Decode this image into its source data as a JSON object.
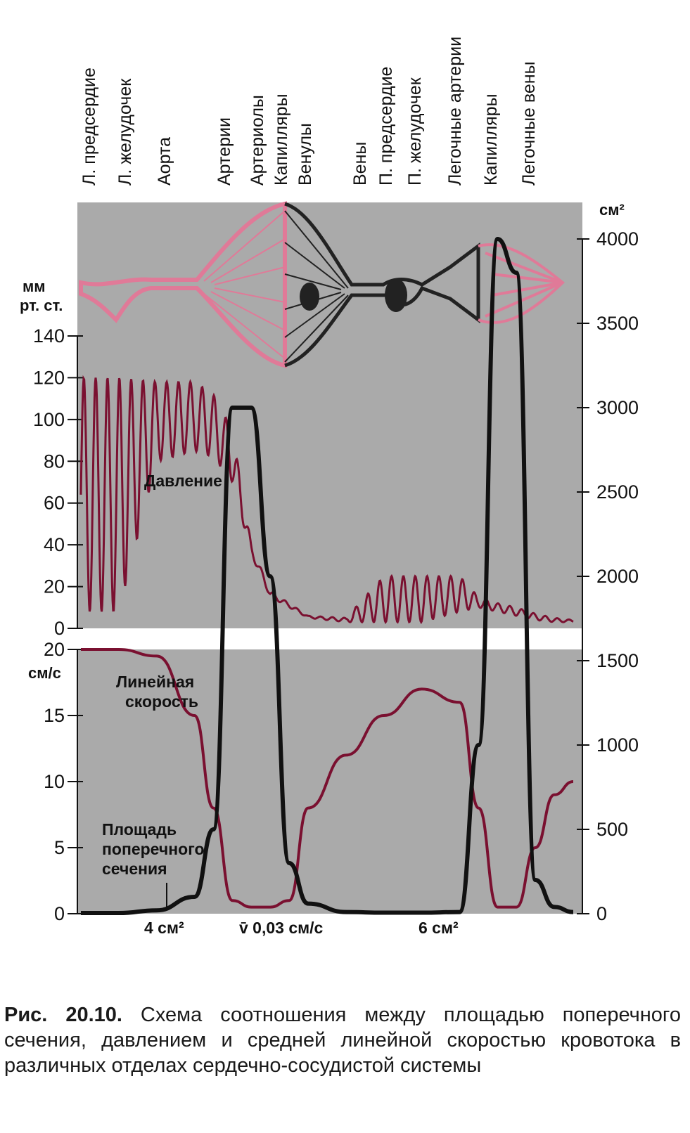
{
  "chart_data": {
    "type": "line",
    "segments": [
      "Л. предсердие",
      "Л. желудочек",
      "Аорта",
      "Артерии",
      "Артериолы",
      "Капилляры",
      "Венулы",
      "Вены",
      "П. предсердие",
      "П. желудочек",
      "Легочные артерии",
      "Капилляры",
      "Легочные вены"
    ],
    "pressure_axis": {
      "unit_line1": "мм",
      "unit_line2": "рт. ст.",
      "ticks": [
        "0",
        "20",
        "40",
        "60",
        "80",
        "100",
        "120",
        "140"
      ],
      "range": [
        0,
        140
      ]
    },
    "velocity_axis": {
      "unit": "см/с",
      "ticks": [
        "0",
        "5",
        "10",
        "15",
        "20"
      ],
      "range": [
        0,
        20
      ]
    },
    "area_axis": {
      "unit": "см²",
      "ticks": [
        "0",
        "500",
        "1000",
        "1500",
        "2000",
        "2500",
        "3000",
        "3500",
        "4000"
      ],
      "range": [
        0,
        4000
      ]
    },
    "series": [
      {
        "name": "Давление",
        "color": "#7a1030",
        "x": [
          0,
          1,
          2,
          3,
          3.5,
          4,
          4.5,
          5,
          5.5,
          6,
          7,
          8,
          9,
          10,
          10.5,
          11,
          11.5,
          12,
          12.5,
          13
        ],
        "min": [
          8,
          8,
          80,
          85,
          82,
          70,
          35,
          15,
          10,
          5,
          3,
          3,
          3,
          8,
          10,
          8,
          6,
          4,
          3,
          3
        ],
        "max": [
          120,
          120,
          118,
          118,
          112,
          95,
          40,
          18,
          12,
          6,
          5,
          25,
          25,
          25,
          15,
          12,
          10,
          7,
          5,
          4
        ]
      },
      {
        "name": "Линейная скорость",
        "color": "#7a1030",
        "x": [
          0,
          1,
          2,
          3,
          3.5,
          4,
          4.5,
          5,
          5.5,
          6,
          7,
          8,
          9,
          10,
          10.5,
          11,
          11.5,
          12,
          12.5,
          13
        ],
        "y": [
          20,
          20,
          19.5,
          15,
          8,
          1,
          0.5,
          0.5,
          1,
          8,
          12,
          15,
          17,
          16,
          8,
          0.5,
          0.5,
          5,
          9,
          10
        ]
      },
      {
        "name": "Площадь поперечного сечения",
        "color": "#111111",
        "x": [
          0,
          1,
          2,
          3,
          3.5,
          4,
          4.5,
          5,
          5.5,
          6,
          7,
          8,
          9,
          10,
          10.5,
          11,
          11.5,
          12,
          12.5,
          13
        ],
        "y": [
          4,
          4,
          20,
          100,
          500,
          3000,
          3000,
          2000,
          300,
          60,
          10,
          6,
          6,
          10,
          1000,
          4000,
          3800,
          200,
          40,
          10
        ]
      }
    ],
    "annotations": {
      "pressure": "Давление",
      "velocity_1": "Линейная",
      "velocity_2": "скорость",
      "area_1": "Площадь",
      "area_2": "поперечного",
      "area_3": "сечения"
    },
    "bottom_labels": [
      "4 см²",
      "v̄ 0,03 см/с",
      "6 см²"
    ]
  },
  "caption": {
    "label": "Рис. 20.10.",
    "text": "Схема соотношения между площадью поперечного сечения, давлением и средней линейной скоростью кровотока в различных отделах сердечно-сосудистой системы"
  },
  "colors": {
    "panel": "#aaaaaa",
    "pink": "#e07a98",
    "dark_red": "#7a1030",
    "black": "#111111"
  }
}
